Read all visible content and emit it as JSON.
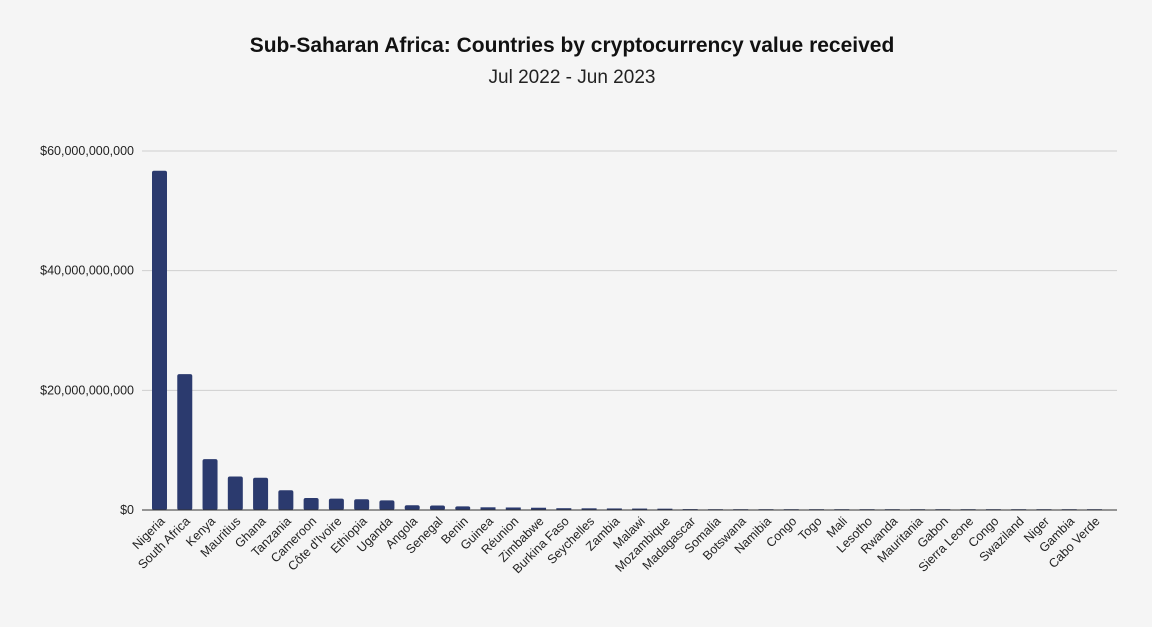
{
  "chart_data": {
    "type": "bar",
    "title": "Sub-Saharan Africa: Countries by cryptocurrency value received",
    "subtitle": "Jul 2022 - Jun 2023",
    "xlabel": "",
    "ylabel": "",
    "ylim": [
      0,
      60000000000
    ],
    "yticks": [
      0,
      20000000000,
      40000000000,
      60000000000
    ],
    "ytick_labels": [
      "$0",
      "$20,000,000,000",
      "$40,000,000,000",
      "$60,000,000,000"
    ],
    "grid": true,
    "bar_color": "#2b3a6e",
    "categories": [
      "Nigeria",
      "South Africa",
      "Kenya",
      "Mauritius",
      "Ghana",
      "Tanzania",
      "Cameroon",
      "Côte d'Ivoire",
      "Ethiopia",
      "Uganda",
      "Angola",
      "Senegal",
      "Benin",
      "Guinea",
      "Réunion",
      "Zimbabwe",
      "Burkina Faso",
      "Seychelles",
      "Zambia",
      "Malawi",
      "Mozambique",
      "Madagascar",
      "Somalia",
      "Botswana",
      "Namibia",
      "Congo",
      "Togo",
      "Mali",
      "Lesotho",
      "Rwanda",
      "Mauritania",
      "Gabon",
      "Sierra Leone",
      "Congo",
      "Swaziland",
      "Niger",
      "Gambia",
      "Cabo Verde"
    ],
    "values": [
      56700000000,
      22700000000,
      8500000000,
      5600000000,
      5400000000,
      3300000000,
      2000000000,
      1900000000,
      1800000000,
      1600000000,
      800000000,
      750000000,
      600000000,
      450000000,
      420000000,
      380000000,
      300000000,
      280000000,
      260000000,
      240000000,
      220000000,
      150000000,
      120000000,
      110000000,
      100000000,
      90000000,
      80000000,
      70000000,
      60000000,
      55000000,
      50000000,
      45000000,
      40000000,
      35000000,
      30000000,
      25000000,
      20000000,
      15000000
    ]
  }
}
